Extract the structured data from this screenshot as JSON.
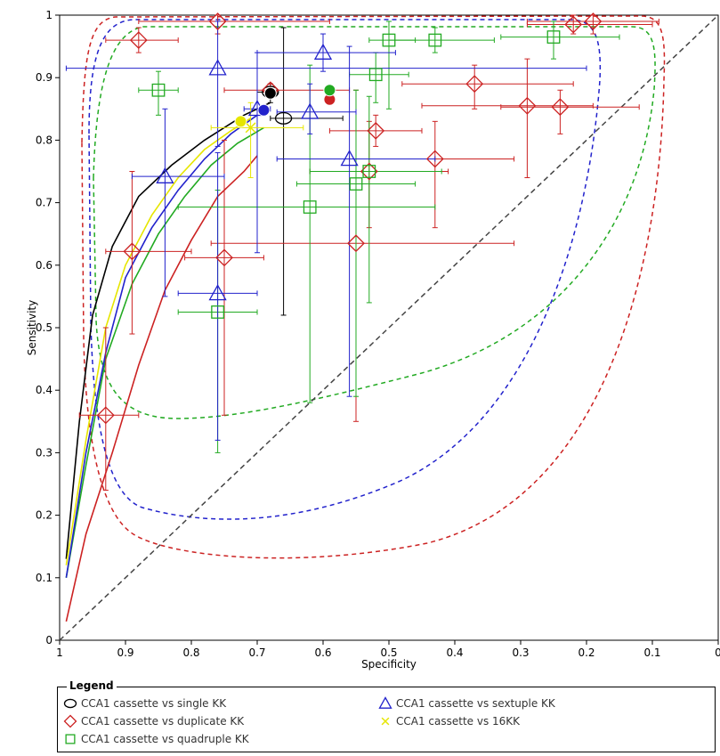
{
  "chart_data": {
    "type": "scatter",
    "xlabel": "Specificity",
    "ylabel": "Sensitivity",
    "xlim": [
      1,
      0
    ],
    "ylim": [
      0,
      1
    ],
    "x_ticks": [
      "1",
      "0.9",
      "0.8",
      "0.7",
      "0.6",
      "0.5",
      "0.4",
      "0.3",
      "0.2",
      "0.1",
      "0"
    ],
    "y_ticks": [
      "0",
      "0.1",
      "0.2",
      "0.3",
      "0.4",
      "0.5",
      "0.6",
      "0.7",
      "0.8",
      "0.9",
      "1"
    ],
    "grid": false,
    "legend_title": "Legend",
    "legend_position": "bottom",
    "series": [
      {
        "name": "CCA1 cassette vs single KK",
        "marker": "circle",
        "color": "#000000",
        "summary_point": {
          "spec": 0.68,
          "sens": 0.875
        },
        "points": [
          {
            "spec": 0.66,
            "sens": 0.835,
            "spec_ci": [
              0.57,
              0.68
            ],
            "sens_ci": [
              0.52,
              0.98
            ]
          },
          {
            "spec": 0.68,
            "sens": 0.877,
            "spec_ci": [
              0.67,
              0.7
            ],
            "sens_ci": [
              0.86,
              0.89
            ]
          }
        ],
        "curve": [
          [
            0.99,
            0.13
          ],
          [
            0.97,
            0.35
          ],
          [
            0.95,
            0.52
          ],
          [
            0.92,
            0.63
          ],
          [
            0.88,
            0.71
          ],
          [
            0.83,
            0.76
          ],
          [
            0.78,
            0.8
          ],
          [
            0.72,
            0.84
          ],
          [
            0.68,
            0.86
          ]
        ]
      },
      {
        "name": "CCA1 cassette vs duplicate KK",
        "marker": "diamond",
        "color": "#cc2222",
        "summary_point": {
          "spec": 0.59,
          "sens": 0.865
        },
        "points": [
          {
            "spec": 0.76,
            "sens": 0.99,
            "spec_ci": [
              0.88,
              0.59
            ],
            "sens_ci": [
              0.97,
              1.0
            ]
          },
          {
            "spec": 0.22,
            "sens": 0.985,
            "spec_ci": [
              0.29,
              0.1
            ],
            "sens_ci": [
              0.97,
              1.0
            ]
          },
          {
            "spec": 0.19,
            "sens": 0.99,
            "spec_ci": [
              0.29,
              0.09
            ],
            "sens_ci": [
              0.97,
              1.0
            ]
          },
          {
            "spec": 0.88,
            "sens": 0.96,
            "spec_ci": [
              0.93,
              0.82
            ],
            "sens_ci": [
              0.94,
              0.98
            ]
          },
          {
            "spec": 0.68,
            "sens": 0.88,
            "spec_ci": [
              0.75,
              0.56
            ],
            "sens_ci": [
              0.87,
              0.89
            ]
          },
          {
            "spec": 0.37,
            "sens": 0.89,
            "spec_ci": [
              0.48,
              0.22
            ],
            "sens_ci": [
              0.85,
              0.92
            ]
          },
          {
            "spec": 0.29,
            "sens": 0.855,
            "spec_ci": [
              0.45,
              0.19
            ],
            "sens_ci": [
              0.74,
              0.93
            ]
          },
          {
            "spec": 0.24,
            "sens": 0.853,
            "spec_ci": [
              0.33,
              0.12
            ],
            "sens_ci": [
              0.81,
              0.88
            ]
          },
          {
            "spec": 0.52,
            "sens": 0.815,
            "spec_ci": [
              0.59,
              0.45
            ],
            "sens_ci": [
              0.79,
              0.84
            ]
          },
          {
            "spec": 0.43,
            "sens": 0.77,
            "spec_ci": [
              0.56,
              0.31
            ],
            "sens_ci": [
              0.66,
              0.83
            ]
          },
          {
            "spec": 0.53,
            "sens": 0.75,
            "spec_ci": [
              0.62,
              0.41
            ],
            "sens_ci": [
              0.66,
              0.83
            ]
          },
          {
            "spec": 0.55,
            "sens": 0.635,
            "spec_ci": [
              0.77,
              0.31
            ],
            "sens_ci": [
              0.35,
              0.88
            ]
          },
          {
            "spec": 0.89,
            "sens": 0.622,
            "spec_ci": [
              0.93,
              0.8
            ],
            "sens_ci": [
              0.49,
              0.75
            ]
          },
          {
            "spec": 0.75,
            "sens": 0.612,
            "spec_ci": [
              0.81,
              0.69
            ],
            "sens_ci": [
              0.36,
              0.8
            ]
          },
          {
            "spec": 0.93,
            "sens": 0.36,
            "spec_ci": [
              0.97,
              0.88
            ],
            "sens_ci": [
              0.24,
              0.5
            ]
          }
        ],
        "curve": [
          [
            0.99,
            0.03
          ],
          [
            0.96,
            0.17
          ],
          [
            0.92,
            0.3
          ],
          [
            0.88,
            0.44
          ],
          [
            0.84,
            0.56
          ],
          [
            0.8,
            0.64
          ],
          [
            0.76,
            0.71
          ],
          [
            0.72,
            0.75
          ],
          [
            0.7,
            0.775
          ]
        ]
      },
      {
        "name": "CCA1 cassette vs quadruple KK",
        "marker": "square",
        "color": "#22aa22",
        "summary_point": {
          "spec": 0.59,
          "sens": 0.88
        },
        "points": [
          {
            "spec": 0.85,
            "sens": 0.88,
            "spec_ci": [
              0.88,
              0.82
            ],
            "sens_ci": [
              0.84,
              0.91
            ]
          },
          {
            "spec": 0.5,
            "sens": 0.96,
            "spec_ci": [
              0.53,
              0.46
            ],
            "sens_ci": [
              0.85,
              0.99
            ]
          },
          {
            "spec": 0.43,
            "sens": 0.96,
            "spec_ci": [
              0.5,
              0.34
            ],
            "sens_ci": [
              0.94,
              0.98
            ]
          },
          {
            "spec": 0.25,
            "sens": 0.965,
            "spec_ci": [
              0.33,
              0.15
            ],
            "sens_ci": [
              0.93,
              0.99
            ]
          },
          {
            "spec": 0.52,
            "sens": 0.905,
            "spec_ci": [
              0.56,
              0.47
            ],
            "sens_ci": [
              0.86,
              0.94
            ]
          },
          {
            "spec": 0.53,
            "sens": 0.75,
            "spec_ci": [
              0.62,
              0.42
            ],
            "sens_ci": [
              0.54,
              0.87
            ]
          },
          {
            "spec": 0.55,
            "sens": 0.73,
            "spec_ci": [
              0.64,
              0.46
            ],
            "sens_ci": [
              0.39,
              0.88
            ]
          },
          {
            "spec": 0.62,
            "sens": 0.693,
            "spec_ci": [
              0.82,
              0.43
            ],
            "sens_ci": [
              0.38,
              0.92
            ]
          },
          {
            "spec": 0.76,
            "sens": 0.525,
            "spec_ci": [
              0.82,
              0.7
            ],
            "sens_ci": [
              0.3,
              0.72
            ]
          }
        ],
        "curve": [
          [
            0.99,
            0.1
          ],
          [
            0.96,
            0.28
          ],
          [
            0.93,
            0.45
          ],
          [
            0.89,
            0.57
          ],
          [
            0.85,
            0.65
          ],
          [
            0.81,
            0.71
          ],
          [
            0.77,
            0.76
          ],
          [
            0.73,
            0.795
          ],
          [
            0.69,
            0.82
          ]
        ]
      },
      {
        "name": "CCA1 cassette vs sextuple KK",
        "marker": "triangle",
        "color": "#2222cc",
        "summary_point": {
          "spec": 0.69,
          "sens": 0.848
        },
        "points": [
          {
            "spec": 0.76,
            "sens": 0.915,
            "spec_ci": [
              0.99,
              0.2
            ],
            "sens_ci": [
              0.79,
              0.99
            ]
          },
          {
            "spec": 0.6,
            "sens": 0.94,
            "spec_ci": [
              0.7,
              0.49
            ],
            "sens_ci": [
              0.91,
              0.97
            ]
          },
          {
            "spec": 0.62,
            "sens": 0.845,
            "spec_ci": [
              0.67,
              0.55
            ],
            "sens_ci": [
              0.81,
              0.89
            ]
          },
          {
            "spec": 0.56,
            "sens": 0.77,
            "spec_ci": [
              0.67,
              0.43
            ],
            "sens_ci": [
              0.39,
              0.95
            ]
          },
          {
            "spec": 0.84,
            "sens": 0.742,
            "spec_ci": [
              0.89,
              0.75
            ],
            "sens_ci": [
              0.55,
              0.85
            ]
          },
          {
            "spec": 0.76,
            "sens": 0.555,
            "spec_ci": [
              0.82,
              0.7
            ],
            "sens_ci": [
              0.32,
              0.78
            ]
          },
          {
            "spec": 0.7,
            "sens": 0.85,
            "spec_ci": [
              0.72,
              0.68
            ],
            "sens_ci": [
              0.62,
              0.94
            ]
          }
        ],
        "curve": [
          [
            0.99,
            0.1
          ],
          [
            0.96,
            0.3
          ],
          [
            0.93,
            0.46
          ],
          [
            0.9,
            0.58
          ],
          [
            0.86,
            0.66
          ],
          [
            0.82,
            0.72
          ],
          [
            0.78,
            0.77
          ],
          [
            0.74,
            0.81
          ],
          [
            0.7,
            0.84
          ]
        ]
      },
      {
        "name": "CCA1 cassette vs 16KK",
        "marker": "x",
        "color": "#e6e600",
        "summary_point": {
          "spec": 0.725,
          "sens": 0.83
        },
        "points": [
          {
            "spec": 0.71,
            "sens": 0.82,
            "spec_ci": [
              0.77,
              0.63
            ],
            "sens_ci": [
              0.74,
              0.86
            ]
          }
        ],
        "curve": [
          [
            0.99,
            0.12
          ],
          [
            0.96,
            0.32
          ],
          [
            0.93,
            0.5
          ],
          [
            0.9,
            0.6
          ],
          [
            0.86,
            0.68
          ],
          [
            0.82,
            0.74
          ],
          [
            0.78,
            0.785
          ],
          [
            0.74,
            0.815
          ],
          [
            0.71,
            0.835
          ]
        ]
      }
    ],
    "reference_line": {
      "from": [
        1,
        0
      ],
      "to": [
        0,
        1
      ],
      "style": "dashed",
      "color": "#444444"
    }
  }
}
